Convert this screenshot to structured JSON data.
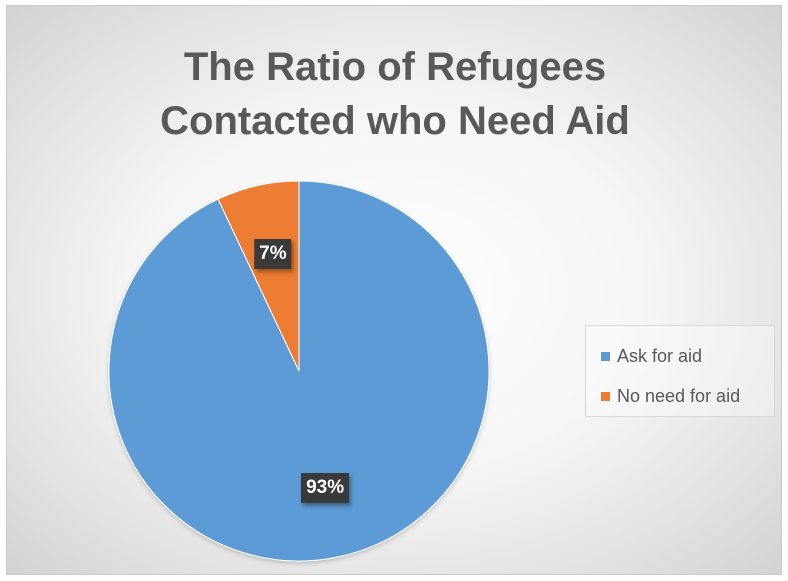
{
  "chart_data": {
    "type": "pie",
    "title_lines": [
      "The Ratio of Refugees",
      "Contacted who Need Aid"
    ],
    "slices": [
      {
        "name": "Ask for aid",
        "value": 93,
        "label": "93%",
        "color": "#5b9bd5"
      },
      {
        "name": "No need for aid",
        "value": 7,
        "label": "7%",
        "color": "#ed7d31"
      }
    ],
    "legend_position": "right"
  }
}
